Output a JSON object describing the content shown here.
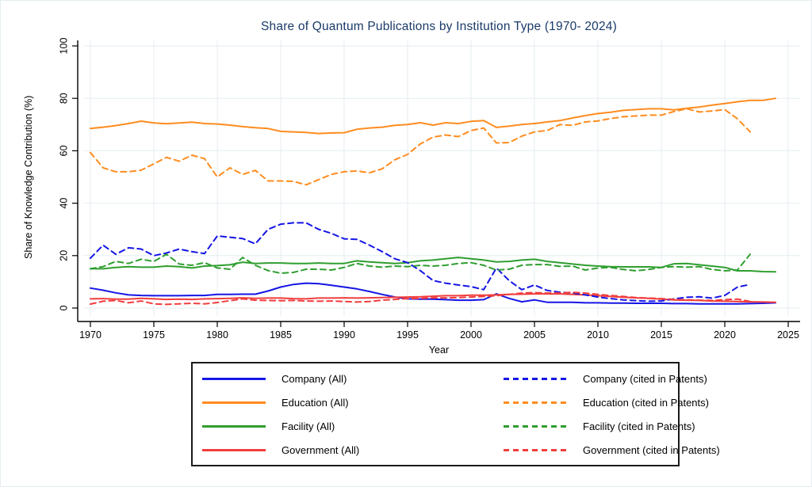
{
  "chart_data": {
    "type": "line",
    "title": "Share of Quantum Publications by Institution Type (1970- 2024)",
    "xlabel": "Year",
    "ylabel": "Share of Knowledge Contribution (%)",
    "x_start_year": 1970,
    "x_step": 1,
    "xlim": [
      1969,
      2026
    ],
    "ylim": [
      0,
      100
    ],
    "xticks": [
      1970,
      1975,
      1980,
      1985,
      1990,
      1995,
      2000,
      2005,
      2010,
      2015,
      2020,
      2025
    ],
    "yticks": [
      0,
      20,
      40,
      60,
      80,
      100
    ],
    "grid": true,
    "legend_position": "bottom",
    "grid_color": "#e4eef2",
    "title_color": "#1a3a68",
    "series": [
      {
        "name": "Company (All)",
        "color": "#1515e6",
        "style": "solid",
        "values": [
          7.6,
          6.8,
          5.8,
          5.0,
          4.8,
          4.7,
          4.7,
          4.7,
          4.8,
          4.8,
          5.2,
          5.2,
          5.3,
          5.3,
          6.5,
          8.0,
          9.0,
          9.5,
          9.3,
          8.7,
          8.0,
          7.3,
          6.3,
          5.2,
          4.2,
          3.5,
          3.4,
          3.4,
          3.2,
          3.0,
          3.0,
          3.2,
          5.4,
          3.7,
          2.4,
          3.1,
          2.2,
          2.2,
          2.2,
          2.0,
          2.0,
          1.9,
          1.9,
          1.8,
          1.8,
          1.8,
          1.7,
          1.7,
          1.6,
          1.6,
          1.6,
          1.6,
          1.7,
          1.8,
          2.0
        ]
      },
      {
        "name": "Education (All)",
        "color": "#ff8c1f",
        "style": "solid",
        "values": [
          68.5,
          69.0,
          69.6,
          70.4,
          71.3,
          70.6,
          70.3,
          70.6,
          70.9,
          70.4,
          70.2,
          69.8,
          69.2,
          68.8,
          68.5,
          67.4,
          67.2,
          67.0,
          66.6,
          66.8,
          66.9,
          68.2,
          68.7,
          69.0,
          69.7,
          70.0,
          70.7,
          69.8,
          70.7,
          70.4,
          71.2,
          71.5,
          68.9,
          69.4,
          70.0,
          70.4,
          71.0,
          71.5,
          72.5,
          73.4,
          74.2,
          74.7,
          75.4,
          75.7,
          76.0,
          76.0,
          75.6,
          76.2,
          76.7,
          77.4,
          78.0,
          78.7,
          79.2,
          79.2,
          80.0
        ]
      },
      {
        "name": "Facility (All)",
        "color": "#2f9e2f",
        "style": "solid",
        "values": [
          15.0,
          15.0,
          15.5,
          15.8,
          15.6,
          15.6,
          16.0,
          15.8,
          15.3,
          16.0,
          16.2,
          16.5,
          17.5,
          17.0,
          17.2,
          17.2,
          17.0,
          17.0,
          17.2,
          17.0,
          17.0,
          18.0,
          17.6,
          17.3,
          17.0,
          17.3,
          18.0,
          18.3,
          18.8,
          19.3,
          18.8,
          18.3,
          17.6,
          17.8,
          18.3,
          18.6,
          17.8,
          17.3,
          16.8,
          16.3,
          16.0,
          15.8,
          15.7,
          15.7,
          15.7,
          15.5,
          16.9,
          17.0,
          16.5,
          16.0,
          15.5,
          14.2,
          14.2,
          13.9,
          13.8
        ]
      },
      {
        "name": "Government (All)",
        "color": "#f23d3d",
        "style": "solid",
        "values": [
          3.5,
          3.6,
          3.4,
          3.4,
          3.7,
          3.5,
          3.3,
          3.4,
          3.3,
          3.5,
          3.6,
          3.7,
          3.9,
          3.7,
          3.8,
          3.8,
          3.6,
          3.5,
          3.8,
          3.8,
          3.9,
          3.8,
          3.9,
          4.0,
          4.1,
          4.2,
          4.3,
          4.5,
          4.7,
          4.7,
          4.9,
          4.9,
          5.0,
          5.2,
          5.3,
          5.4,
          5.4,
          5.4,
          5.2,
          5.0,
          4.7,
          4.4,
          4.1,
          3.9,
          3.7,
          3.4,
          3.1,
          3.0,
          2.9,
          2.7,
          2.6,
          2.5,
          2.4,
          2.3,
          2.2
        ]
      },
      {
        "name": "Company (cited in Patents)",
        "color": "#1515e6",
        "style": "dashed",
        "values": [
          19.0,
          24.0,
          20.5,
          23.0,
          22.5,
          20.0,
          21.0,
          22.5,
          21.5,
          20.8,
          27.5,
          27.0,
          26.5,
          24.5,
          30.0,
          32.0,
          32.5,
          32.5,
          30.0,
          28.5,
          26.4,
          26.2,
          24.0,
          21.5,
          18.8,
          17.3,
          14.3,
          10.5,
          9.5,
          8.8,
          8.2,
          7.0,
          15.3,
          10.5,
          7.0,
          8.8,
          6.7,
          6.0,
          5.8,
          5.0,
          4.2,
          3.6,
          3.1,
          2.8,
          2.6,
          2.7,
          3.5,
          4.1,
          4.3,
          3.8,
          4.8,
          8.0,
          9.0
        ]
      },
      {
        "name": "Education (cited in Patents)",
        "color": "#ff8c1f",
        "style": "dashed",
        "values": [
          59.3,
          53.5,
          52.0,
          52.0,
          52.6,
          55.0,
          57.5,
          56.0,
          58.3,
          57.0,
          50.0,
          53.5,
          51.0,
          52.5,
          48.5,
          48.5,
          48.3,
          47.0,
          49.0,
          51.0,
          52.0,
          52.3,
          51.6,
          53.1,
          56.6,
          58.6,
          62.6,
          65.2,
          66.0,
          65.4,
          67.7,
          68.7,
          63.0,
          63.1,
          65.6,
          67.2,
          67.7,
          70.0,
          69.7,
          71.0,
          71.4,
          72.3,
          73.0,
          73.3,
          73.6,
          73.6,
          75.0,
          76.0,
          74.8,
          75.2,
          75.7,
          72.2,
          67.2
        ]
      },
      {
        "name": "Facility (cited in Patents)",
        "color": "#2f9e2f",
        "style": "dashed",
        "values": [
          15.0,
          15.8,
          17.8,
          17.0,
          18.6,
          17.8,
          20.5,
          16.8,
          16.3,
          17.3,
          15.3,
          14.8,
          19.3,
          16.3,
          14.3,
          13.3,
          13.6,
          14.8,
          14.8,
          14.5,
          15.5,
          17.0,
          16.0,
          15.6,
          16.0,
          15.8,
          16.3,
          16.0,
          16.3,
          17.0,
          17.3,
          16.3,
          14.5,
          14.8,
          16.3,
          16.6,
          16.6,
          15.9,
          16.0,
          14.5,
          15.3,
          15.5,
          14.7,
          14.2,
          14.7,
          15.5,
          15.8,
          15.6,
          15.8,
          14.7,
          14.2,
          14.5,
          20.5
        ]
      },
      {
        "name": "Government (cited in Patents)",
        "color": "#f23d3d",
        "style": "dashed",
        "values": [
          1.5,
          2.6,
          2.9,
          2.0,
          2.7,
          1.6,
          1.4,
          1.6,
          1.8,
          1.6,
          2.1,
          2.8,
          3.5,
          3.0,
          2.9,
          2.8,
          2.9,
          2.7,
          2.6,
          2.7,
          2.5,
          2.3,
          2.5,
          3.0,
          3.3,
          3.6,
          3.7,
          3.9,
          3.9,
          4.0,
          4.2,
          4.4,
          4.7,
          5.2,
          5.7,
          5.9,
          5.7,
          5.7,
          6.0,
          5.7,
          5.2,
          4.8,
          4.4,
          4.0,
          3.8,
          3.6,
          3.3,
          3.1,
          3.0,
          2.9,
          3.2,
          3.4,
          2.5
        ]
      }
    ]
  },
  "legend": {
    "items": [
      {
        "label": "Company (All)",
        "color": "#1515e6",
        "style": "solid"
      },
      {
        "label": "Education (All)",
        "color": "#ff8c1f",
        "style": "solid"
      },
      {
        "label": "Facility (All)",
        "color": "#2f9e2f",
        "style": "solid"
      },
      {
        "label": "Government (All)",
        "color": "#f23d3d",
        "style": "solid"
      },
      {
        "label": "Company (cited in Patents)",
        "color": "#1515e6",
        "style": "dashed"
      },
      {
        "label": "Education (cited in Patents)",
        "color": "#ff8c1f",
        "style": "dashed"
      },
      {
        "label": "Facility (cited in Patents)",
        "color": "#2f9e2f",
        "style": "dashed"
      },
      {
        "label": "Government (cited in Patents)",
        "color": "#f23d3d",
        "style": "dashed"
      }
    ]
  }
}
